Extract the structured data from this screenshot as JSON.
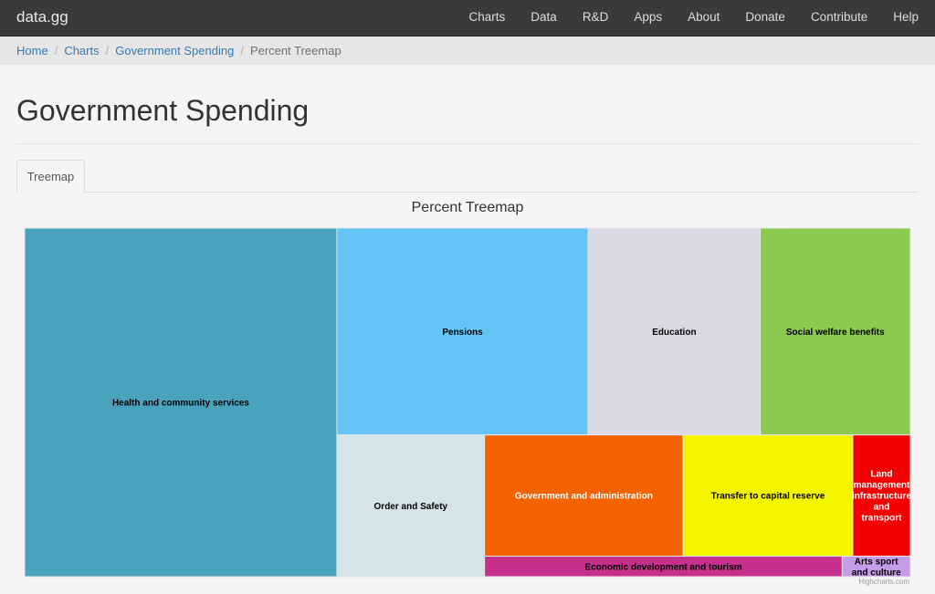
{
  "brand": "data.gg",
  "nav": [
    "Charts",
    "Data",
    "R&D",
    "Apps",
    "About",
    "Donate",
    "Contribute",
    "Help"
  ],
  "breadcrumb": {
    "items": [
      "Home",
      "Charts",
      "Government Spending"
    ],
    "current": "Percent Treemap"
  },
  "page_title": "Government Spending",
  "tabs": [
    "Treemap"
  ],
  "credit": "Highcharts.com",
  "chart_data": {
    "type": "treemap",
    "title": "Percent Treemap",
    "unit": "percent",
    "series": [
      {
        "name": "Health and community services",
        "value": 31.2,
        "color": "#4aa3bd",
        "label_color": "#000000"
      },
      {
        "name": "Pensions",
        "value": 14.9,
        "color": "#63c4f5",
        "label_color": "#000000"
      },
      {
        "name": "Education",
        "value": 10.2,
        "color": "#dcd8e5",
        "label_color": "#000000"
      },
      {
        "name": "Social welfare benefits",
        "value": 8.9,
        "color": "#8bc94f",
        "label_color": "#000000"
      },
      {
        "name": "Order and Safety",
        "value": 6.0,
        "color": "#d4e4ea",
        "label_color": "#000000"
      },
      {
        "name": "Government and administration",
        "value": 6.9,
        "color": "#f56300",
        "label_color": "#ffffff"
      },
      {
        "name": "Transfer to capital reserve",
        "value": 5.9,
        "color": "#f5f500",
        "label_color": "#000000"
      },
      {
        "name": "Land management infrastructure and transport",
        "value": 2.0,
        "color": "#f50000",
        "label_color": "#ffffff"
      },
      {
        "name": "Economic development and tourism",
        "value": 2.1,
        "color": "#c62f8c",
        "label_color": "#000000"
      },
      {
        "name": "Arts sport and culture",
        "value": 0.4,
        "color": "#c49ce8",
        "label_color": "#000000"
      }
    ]
  }
}
